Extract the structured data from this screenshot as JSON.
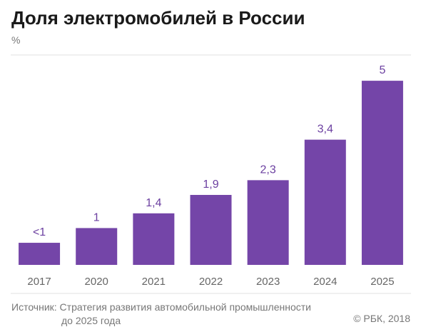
{
  "header": {
    "title": "Доля электромобилей в России",
    "unit": "%"
  },
  "colors": {
    "bar": "#7445a8",
    "bar_label": "#6b3fa0",
    "grid": "#e2e2e2"
  },
  "footer": {
    "source_line1": "Источник: Стратегия развития автомобильной промышленности",
    "source_line2": "до 2025 года",
    "copyright": "© РБК, 2018"
  },
  "chart_data": {
    "type": "bar",
    "title": "Доля электромобилей в России",
    "ylabel": "%",
    "categories": [
      "2017",
      "2020",
      "2021",
      "2022",
      "2023",
      "2024",
      "2025"
    ],
    "values": [
      0.6,
      1,
      1.4,
      1.9,
      2.3,
      3.4,
      5
    ],
    "value_labels": [
      "<1",
      "1",
      "1,4",
      "1,9",
      "2,3",
      "3,4",
      "5"
    ],
    "ylim": [
      0,
      5.7
    ],
    "grid": true,
    "legend": "none"
  }
}
